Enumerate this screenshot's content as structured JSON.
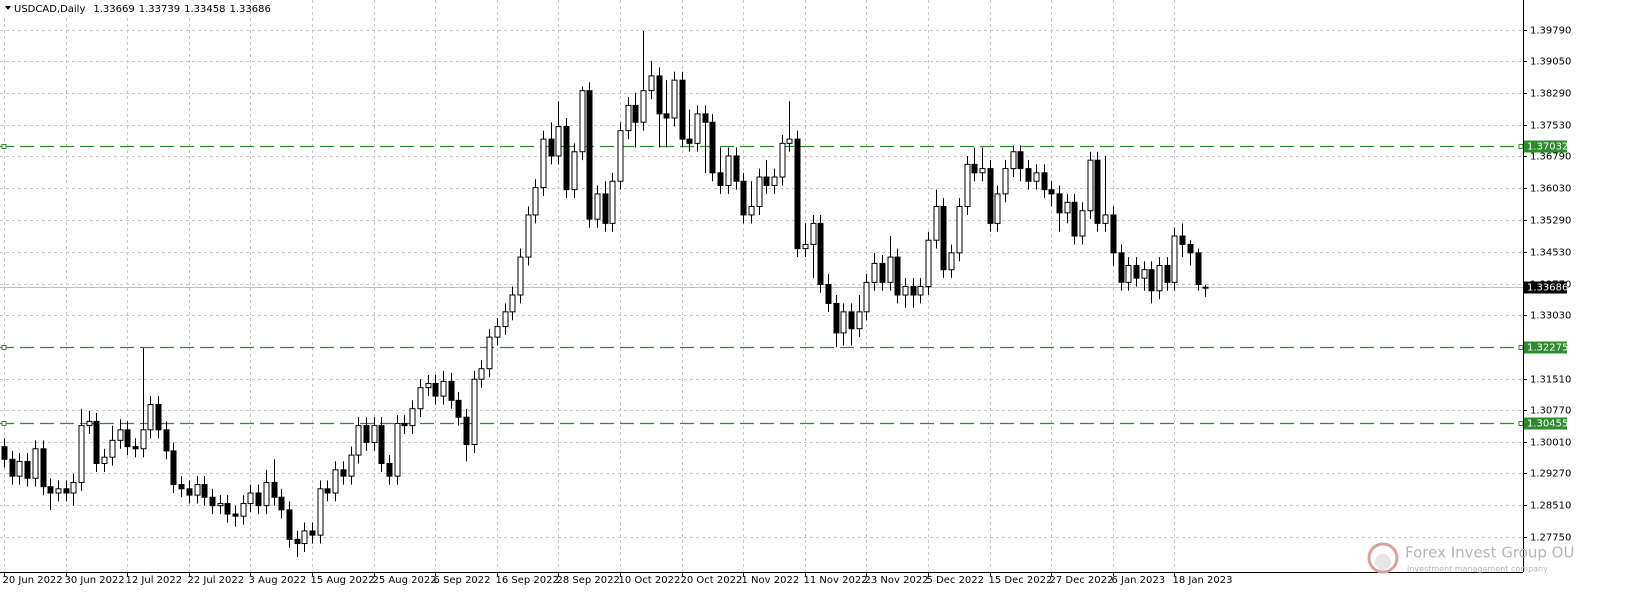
{
  "chart_data": {
    "type": "candlestick",
    "title": "USDCAD,Daily",
    "header_values": [
      1.33669,
      1.33739,
      1.33458,
      1.33686
    ],
    "categories": [
      "20 Jun 2022",
      null,
      null,
      null,
      null,
      null,
      null,
      null,
      "30 Jun 2022",
      null,
      null,
      null,
      null,
      null,
      null,
      null,
      "12 Jul 2022",
      null,
      null,
      null,
      null,
      null,
      null,
      null,
      "22 Jul 2022",
      null,
      null,
      null,
      null,
      null,
      null,
      null,
      "3 Aug 2022",
      null,
      null,
      null,
      null,
      null,
      null,
      null,
      "15 Aug 2022",
      null,
      null,
      null,
      null,
      null,
      null,
      null,
      "25 Aug 2022",
      null,
      null,
      null,
      null,
      null,
      null,
      null,
      "6 Sep 2022",
      null,
      null,
      null,
      null,
      null,
      null,
      null,
      "16 Sep 2022",
      null,
      null,
      null,
      null,
      null,
      null,
      null,
      "28 Sep 2022",
      null,
      null,
      null,
      null,
      null,
      null,
      null,
      "10 Oct 2022",
      null,
      null,
      null,
      null,
      null,
      null,
      null,
      "20 Oct 2022",
      null,
      null,
      null,
      null,
      null,
      null,
      null,
      "1 Nov 2022",
      null,
      null,
      null,
      null,
      null,
      null,
      null,
      "11 Nov 2022",
      null,
      null,
      null,
      null,
      null,
      null,
      null,
      "23 Nov 2022",
      null,
      null,
      null,
      null,
      null,
      null,
      null,
      "5 Dec 2022",
      null,
      null,
      null,
      null,
      null,
      null,
      null,
      "15 Dec 2022",
      null,
      null,
      null,
      null,
      null,
      null,
      null,
      "27 Dec 2022",
      null,
      null,
      null,
      null,
      null,
      null,
      null,
      "6 Jan 2023",
      null,
      null,
      null,
      null,
      null,
      null,
      null,
      "18 Jan 2023",
      null,
      null,
      null,
      null
    ],
    "open": [
      1.299,
      1.296,
      1.292,
      1.2955,
      1.2915,
      1.2985,
      1.2895,
      1.288,
      1.289,
      1.288,
      1.2905,
      1.304,
      1.305,
      1.295,
      1.2965,
      1.3005,
      1.303,
      1.299,
      1.2985,
      1.303,
      1.309,
      1.303,
      1.298,
      1.29,
      1.289,
      1.2875,
      1.29,
      1.287,
      1.285,
      1.2855,
      1.283,
      1.2825,
      1.2855,
      1.288,
      1.285,
      1.2905,
      1.287,
      1.284,
      1.277,
      1.276,
      1.279,
      1.278,
      1.289,
      1.288,
      1.2935,
      1.292,
      1.297,
      1.304,
      1.3,
      1.304,
      1.295,
      1.292,
      1.3045,
      1.304,
      1.308,
      1.313,
      1.314,
      1.311,
      1.3145,
      1.31,
      1.306,
      1.2995,
      1.315,
      1.3175,
      1.325,
      1.3275,
      1.331,
      1.335,
      1.344,
      1.354,
      1.3605,
      1.372,
      1.368,
      1.375,
      1.36,
      1.369,
      1.3835,
      1.353,
      1.359,
      1.352,
      1.362,
      1.374,
      1.38,
      1.376,
      1.3835,
      1.387,
      1.378,
      1.377,
      1.386,
      1.372,
      1.371,
      1.378,
      1.376,
      1.364,
      1.361,
      1.368,
      1.362,
      1.354,
      1.356,
      1.363,
      1.361,
      1.363,
      1.371,
      1.372,
      1.346,
      1.347,
      1.352,
      1.3375,
      1.333,
      1.326,
      1.331,
      1.327,
      1.331,
      1.338,
      1.3425,
      1.338,
      1.344,
      1.335,
      1.337,
      1.335,
      1.337,
      1.348,
      1.356,
      1.341,
      1.345,
      1.356,
      1.366,
      1.364,
      1.365,
      1.352,
      1.359,
      1.365,
      1.369,
      1.365,
      1.362,
      1.364,
      1.36,
      1.359,
      1.3545,
      1.357,
      1.349,
      1.355,
      1.367,
      1.352,
      1.354,
      1.345,
      1.338,
      1.342,
      1.339,
      1.341,
      1.336,
      1.342,
      1.338,
      1.349,
      1.347,
      1.345,
      1.33669
    ],
    "high": [
      1.301,
      1.298,
      1.2975,
      1.2975,
      1.3005,
      1.3005,
      1.2915,
      1.291,
      1.291,
      1.2925,
      1.308,
      1.3075,
      1.307,
      1.2985,
      1.304,
      1.3055,
      1.305,
      1.301,
      1.3224,
      1.311,
      1.311,
      1.305,
      1.3,
      1.292,
      1.291,
      1.292,
      1.292,
      1.289,
      1.2875,
      1.2875,
      1.285,
      1.2875,
      1.29,
      1.29,
      1.2935,
      1.296,
      1.289,
      1.286,
      1.279,
      1.281,
      1.281,
      1.291,
      1.291,
      1.2955,
      1.2955,
      1.299,
      1.306,
      1.306,
      1.306,
      1.306,
      1.297,
      1.3065,
      1.3065,
      1.31,
      1.315,
      1.316,
      1.316,
      1.317,
      1.3165,
      1.312,
      1.308,
      1.317,
      1.3195,
      1.327,
      1.3295,
      1.333,
      1.337,
      1.346,
      1.356,
      1.3625,
      1.374,
      1.376,
      1.381,
      1.377,
      1.371,
      1.3845,
      1.3855,
      1.361,
      1.362,
      1.364,
      1.376,
      1.382,
      1.383,
      1.3977,
      1.3905,
      1.389,
      1.386,
      1.388,
      1.388,
      1.379,
      1.38,
      1.38,
      1.378,
      1.37,
      1.37,
      1.37,
      1.364,
      1.362,
      1.365,
      1.367,
      1.365,
      1.373,
      1.381,
      1.374,
      1.352,
      1.354,
      1.354,
      1.34,
      1.335,
      1.333,
      1.333,
      1.335,
      1.34,
      1.345,
      1.3445,
      1.349,
      1.346,
      1.339,
      1.339,
      1.339,
      1.35,
      1.36,
      1.358,
      1.347,
      1.358,
      1.368,
      1.37,
      1.37,
      1.367,
      1.361,
      1.367,
      1.3705,
      1.3705,
      1.367,
      1.366,
      1.366,
      1.362,
      1.361,
      1.359,
      1.359,
      1.357,
      1.369,
      1.369,
      1.368,
      1.356,
      1.347,
      1.344,
      1.344,
      1.343,
      1.343,
      1.344,
      1.344,
      1.351,
      1.352,
      1.348,
      1.346,
      1.33739
    ],
    "low": [
      1.294,
      1.29,
      1.29,
      1.2895,
      1.2895,
      1.2875,
      1.284,
      1.286,
      1.286,
      1.285,
      1.2885,
      1.302,
      1.293,
      1.293,
      1.2945,
      1.2985,
      1.297,
      1.2965,
      1.2965,
      1.301,
      1.301,
      1.296,
      1.288,
      1.287,
      1.2855,
      1.2855,
      1.285,
      1.283,
      1.283,
      1.281,
      1.28,
      1.2805,
      1.2835,
      1.283,
      1.283,
      1.285,
      1.282,
      1.275,
      1.2728,
      1.274,
      1.276,
      1.276,
      1.286,
      1.286,
      1.29,
      1.29,
      1.295,
      1.298,
      1.298,
      1.293,
      1.29,
      1.29,
      1.302,
      1.302,
      1.306,
      1.311,
      1.309,
      1.309,
      1.308,
      1.304,
      1.2955,
      1.2975,
      1.313,
      1.3155,
      1.323,
      1.3255,
      1.329,
      1.333,
      1.342,
      1.352,
      1.3585,
      1.366,
      1.366,
      1.358,
      1.358,
      1.367,
      1.351,
      1.351,
      1.35,
      1.35,
      1.36,
      1.372,
      1.37,
      1.374,
      1.3815,
      1.37,
      1.37,
      1.375,
      1.37,
      1.369,
      1.369,
      1.364,
      1.362,
      1.359,
      1.359,
      1.36,
      1.352,
      1.352,
      1.354,
      1.359,
      1.359,
      1.361,
      1.369,
      1.344,
      1.344,
      1.339,
      1.3355,
      1.331,
      1.3226,
      1.323,
      1.323,
      1.325,
      1.329,
      1.336,
      1.336,
      1.336,
      1.333,
      1.332,
      1.332,
      1.333,
      1.335,
      1.346,
      1.339,
      1.339,
      1.343,
      1.354,
      1.362,
      1.362,
      1.35,
      1.35,
      1.357,
      1.363,
      1.362,
      1.36,
      1.36,
      1.358,
      1.356,
      1.35,
      1.352,
      1.347,
      1.347,
      1.353,
      1.35,
      1.35,
      1.342,
      1.336,
      1.336,
      1.337,
      1.336,
      1.333,
      1.334,
      1.336,
      1.336,
      1.344,
      1.342,
      1.336,
      1.33458
    ],
    "close": [
      1.296,
      1.292,
      1.2955,
      1.2915,
      1.2985,
      1.2895,
      1.288,
      1.289,
      1.288,
      1.2905,
      1.304,
      1.305,
      1.295,
      1.2965,
      1.3005,
      1.303,
      1.299,
      1.2985,
      1.303,
      1.309,
      1.303,
      1.298,
      1.29,
      1.289,
      1.2875,
      1.29,
      1.287,
      1.285,
      1.2855,
      1.283,
      1.2825,
      1.2855,
      1.288,
      1.285,
      1.2905,
      1.287,
      1.284,
      1.277,
      1.276,
      1.279,
      1.278,
      1.289,
      1.288,
      1.2935,
      1.292,
      1.297,
      1.304,
      1.3,
      1.304,
      1.295,
      1.292,
      1.3045,
      1.304,
      1.308,
      1.313,
      1.314,
      1.311,
      1.3145,
      1.31,
      1.306,
      1.2995,
      1.315,
      1.3175,
      1.325,
      1.3275,
      1.331,
      1.335,
      1.344,
      1.354,
      1.3605,
      1.372,
      1.368,
      1.375,
      1.36,
      1.369,
      1.3835,
      1.353,
      1.359,
      1.352,
      1.362,
      1.374,
      1.38,
      1.376,
      1.3835,
      1.387,
      1.378,
      1.377,
      1.386,
      1.372,
      1.371,
      1.378,
      1.376,
      1.364,
      1.361,
      1.368,
      1.362,
      1.354,
      1.356,
      1.363,
      1.361,
      1.363,
      1.371,
      1.372,
      1.346,
      1.347,
      1.352,
      1.3375,
      1.333,
      1.326,
      1.331,
      1.327,
      1.331,
      1.338,
      1.3425,
      1.338,
      1.344,
      1.335,
      1.337,
      1.335,
      1.337,
      1.348,
      1.356,
      1.341,
      1.345,
      1.356,
      1.366,
      1.364,
      1.365,
      1.352,
      1.359,
      1.365,
      1.369,
      1.365,
      1.362,
      1.364,
      1.36,
      1.359,
      1.3545,
      1.357,
      1.349,
      1.355,
      1.367,
      1.352,
      1.354,
      1.345,
      1.338,
      1.342,
      1.339,
      1.341,
      1.336,
      1.342,
      1.338,
      1.349,
      1.347,
      1.345,
      1.3375,
      1.33686
    ],
    "up_color": "#ffffff",
    "down_color": "#000000",
    "outline_color": "#000000",
    "ylim": [
      1.26925,
      1.40502
    ],
    "yticks": [
      {
        "value": 1.3979,
        "label": "1.39790"
      },
      {
        "value": 1.3905,
        "label": "1.39050"
      },
      {
        "value": 1.3829,
        "label": "1.38290"
      },
      {
        "value": 1.3753,
        "label": "1.37530"
      },
      {
        "value": 1.3679,
        "label": "1.36790"
      },
      {
        "value": 1.3603,
        "label": "1.36030"
      },
      {
        "value": 1.3529,
        "label": "1.35290"
      },
      {
        "value": 1.3453,
        "label": "1.34530"
      },
      {
        "value": 1.3377,
        "label": "1.33770"
      },
      {
        "value": 1.3303,
        "label": "1.33030"
      },
      {
        "value": 1.3151,
        "label": "1.31510"
      },
      {
        "value": 1.3077,
        "label": "1.30770"
      },
      {
        "value": 1.3001,
        "label": "1.30010"
      },
      {
        "value": 1.2927,
        "label": "1.29270"
      },
      {
        "value": 1.2851,
        "label": "1.28510"
      },
      {
        "value": 1.2775,
        "label": "1.27750"
      }
    ],
    "grid": true,
    "levels": [
      {
        "value": 1.37032,
        "color": "#2e8b2e"
      },
      {
        "value": 1.32275,
        "color": "#2e8b2e"
      },
      {
        "value": 1.30455,
        "color": "#2e8b2e"
      }
    ],
    "price_line": {
      "value": 1.33686,
      "color": "#000000"
    },
    "watermark": {
      "name": "Forex Invest Group OU",
      "tagline": "Investment management company"
    }
  }
}
